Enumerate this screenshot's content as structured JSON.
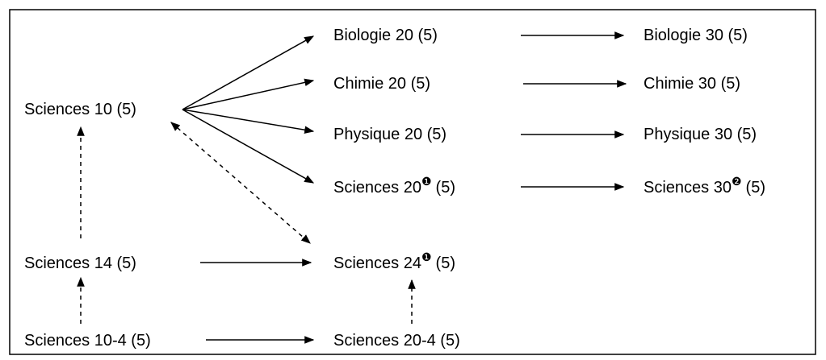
{
  "nodes": [
    {
      "label": "Sciences 10 (5)"
    },
    {
      "label": "Biologie 20 (5)"
    },
    {
      "label": "Chimie 20 (5)"
    },
    {
      "label": "Physique 20 (5)"
    },
    {
      "label": "Sciences 20",
      "note": "❶",
      "credits": "(5)"
    },
    {
      "label": "Biologie 30 (5)"
    },
    {
      "label": "Chimie 30 (5)"
    },
    {
      "label": "Physique 30 (5)"
    },
    {
      "label": "Sciences 30",
      "note": "❷",
      "credits": "(5)"
    },
    {
      "label": "Sciences 14 (5)"
    },
    {
      "label": "Sciences 24",
      "note": "❶",
      "credits": "(5)"
    },
    {
      "label": "Sciences 10-4 (5)"
    },
    {
      "label": "Sciences 20-4 (5)"
    }
  ]
}
